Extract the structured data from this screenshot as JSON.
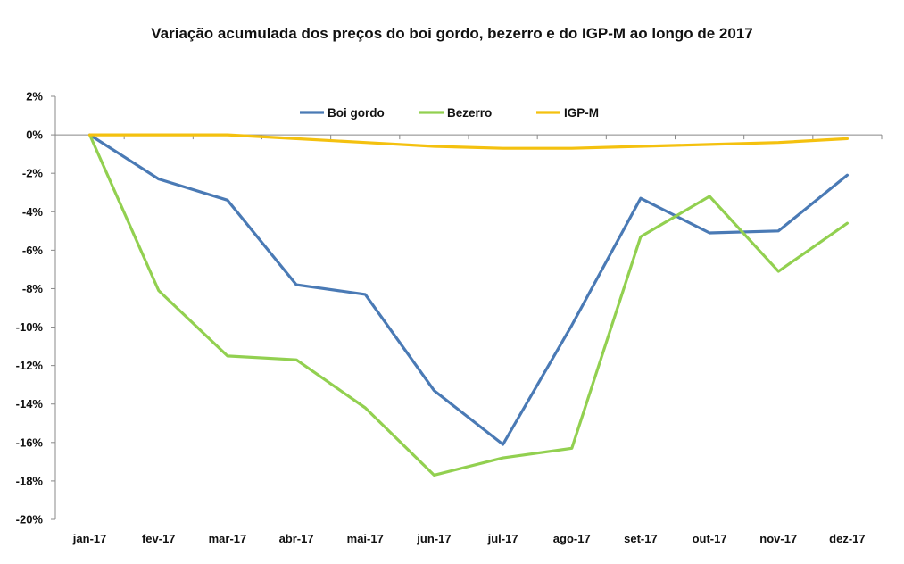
{
  "chart_data": {
    "type": "line",
    "title": "Variação acumulada dos preços do boi gordo, bezerro e do IGP-M ao longo de 2017",
    "categories": [
      "jan-17",
      "fev-17",
      "mar-17",
      "abr-17",
      "mai-17",
      "jun-17",
      "jul-17",
      "ago-17",
      "set-17",
      "out-17",
      "nov-17",
      "dez-17"
    ],
    "ylim": [
      -20,
      2
    ],
    "yticks": [
      2,
      0,
      -2,
      -4,
      -6,
      -8,
      -10,
      -12,
      -14,
      -16,
      -18,
      -20
    ],
    "ytick_labels": [
      "2%",
      "0%",
      "-2%",
      "-4%",
      "-6%",
      "-8%",
      "-10%",
      "-12%",
      "-14%",
      "-16%",
      "-18%",
      "-20%"
    ],
    "legend_position": "top",
    "series": [
      {
        "name": "Boi gordo",
        "color": "#4a7ab5",
        "values": [
          0,
          -2.3,
          -3.4,
          -7.8,
          -8.3,
          -13.3,
          -16.1,
          -9.9,
          -3.3,
          -5.1,
          -5.0,
          -2.1
        ]
      },
      {
        "name": "Bezerro",
        "color": "#92d050",
        "values": [
          0,
          -8.1,
          -11.5,
          -11.7,
          -14.2,
          -17.7,
          -16.8,
          -16.3,
          -5.3,
          -3.2,
          -7.1,
          -4.6
        ]
      },
      {
        "name": "IGP-M",
        "color": "#f4c10f",
        "values": [
          0,
          0,
          0,
          -0.2,
          -0.4,
          -0.6,
          -0.7,
          -0.7,
          -0.6,
          -0.5,
          -0.4,
          -0.2
        ]
      }
    ]
  }
}
